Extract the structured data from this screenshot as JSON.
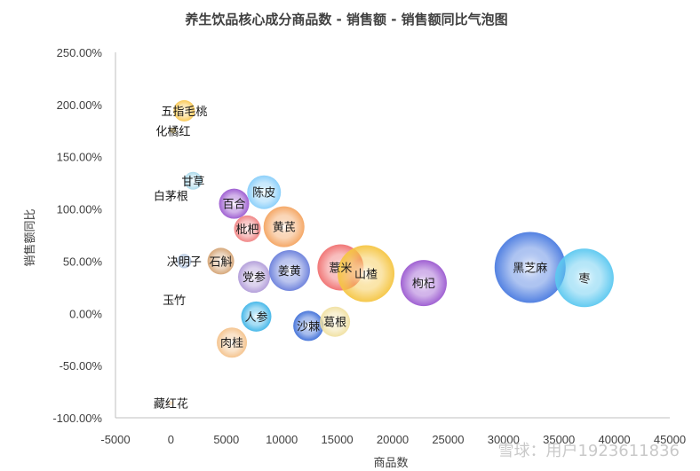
{
  "chart_data": {
    "type": "bubble",
    "title": "养生饮品核心成分商品数 - 销售额 - 销售额同比气泡图",
    "xlabel": "商品数",
    "ylabel": "销售额同比",
    "xlim": [
      -5000,
      45000
    ],
    "ylim": [
      -1.0,
      2.5
    ],
    "x_ticks": [
      "-5000",
      "0",
      "5000",
      "10000",
      "15000",
      "20000",
      "25000",
      "30000",
      "35000",
      "40000",
      "45000"
    ],
    "y_ticks": [
      "250.00%",
      "200.00%",
      "150.00%",
      "100.00%",
      "50.00%",
      "0.00%",
      "-50.00%",
      "-100.00%"
    ],
    "points": [
      {
        "name": "五指毛桃",
        "x": 1200,
        "y": 1.94,
        "size": 12,
        "color": "#f9c74f"
      },
      {
        "name": "化橘红",
        "x": 200,
        "y": 1.75,
        "size": 3,
        "color": "#f6d365"
      },
      {
        "name": "甘草",
        "x": 2000,
        "y": 1.27,
        "size": 10,
        "color": "#a8d8ea"
      },
      {
        "name": "白茅根",
        "x": 0,
        "y": 1.13,
        "size": 2,
        "color": "#cfcfcf"
      },
      {
        "name": "陈皮",
        "x": 8400,
        "y": 1.16,
        "size": 19,
        "color": "#87cefa"
      },
      {
        "name": "百合",
        "x": 5700,
        "y": 1.05,
        "size": 17,
        "color": "#9b59d0"
      },
      {
        "name": "枇杷",
        "x": 6900,
        "y": 0.81,
        "size": 15,
        "color": "#f08080"
      },
      {
        "name": "黄芪",
        "x": 10200,
        "y": 0.83,
        "size": 23,
        "color": "#f4a460"
      },
      {
        "name": "决明子",
        "x": 1200,
        "y": 0.5,
        "size": 8,
        "color": "#b0c4de"
      },
      {
        "name": "石斛",
        "x": 4500,
        "y": 0.5,
        "size": 15,
        "color": "#d4a373"
      },
      {
        "name": "党参",
        "x": 7500,
        "y": 0.35,
        "size": 18,
        "color": "#b19cd9"
      },
      {
        "name": "姜黄",
        "x": 10700,
        "y": 0.41,
        "size": 23,
        "color": "#6a7fdb"
      },
      {
        "name": "薏米",
        "x": 15300,
        "y": 0.44,
        "size": 26,
        "color": "#f07070"
      },
      {
        "name": "山楂",
        "x": 17600,
        "y": 0.38,
        "size": 32,
        "color": "#f5c542"
      },
      {
        "name": "枸杞",
        "x": 22800,
        "y": 0.29,
        "size": 26,
        "color": "#9b59d0"
      },
      {
        "name": "黑芝麻",
        "x": 32400,
        "y": 0.44,
        "size": 40,
        "color": "#4a7be0"
      },
      {
        "name": "枣",
        "x": 37300,
        "y": 0.34,
        "size": 33,
        "color": "#5bc8f0"
      },
      {
        "name": "玉竹",
        "x": 300,
        "y": 0.13,
        "size": 2,
        "color": "#d3d3d3"
      },
      {
        "name": "人参",
        "x": 7700,
        "y": -0.03,
        "size": 17,
        "color": "#3fb5e8"
      },
      {
        "name": "沙棘",
        "x": 12400,
        "y": -0.12,
        "size": 17,
        "color": "#3f6fd8"
      },
      {
        "name": "葛根",
        "x": 14800,
        "y": -0.08,
        "size": 17,
        "color": "#f0e0a0"
      },
      {
        "name": "肉桂",
        "x": 5500,
        "y": -0.28,
        "size": 17,
        "color": "#f4c28b"
      },
      {
        "name": "藏红花",
        "x": 0,
        "y": -0.86,
        "size": 2,
        "color": "#f4c28b"
      }
    ]
  },
  "watermark": {
    "text": "雪球：用户1923611836"
  }
}
